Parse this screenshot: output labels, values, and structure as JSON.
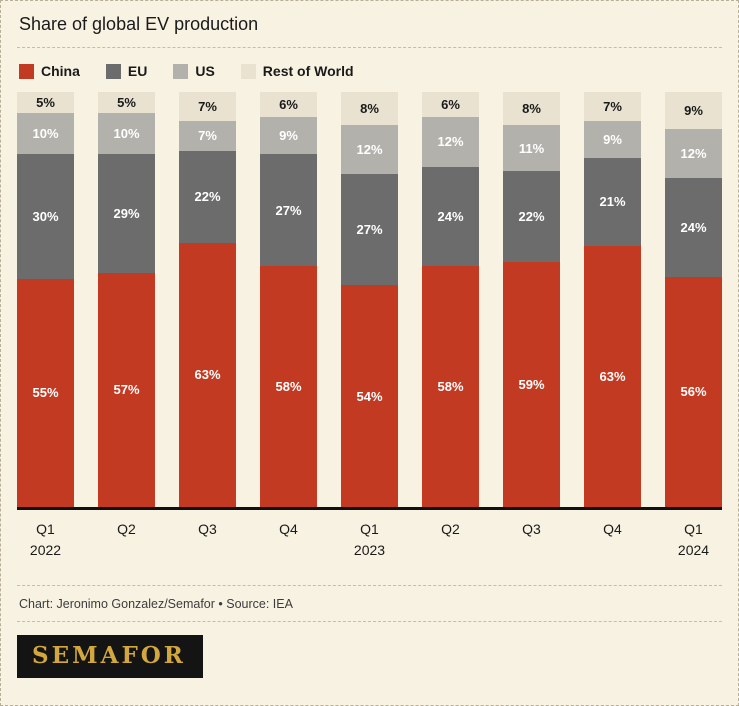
{
  "title": "Share of global EV production",
  "legend": [
    {
      "label": "China",
      "color": "#c23a22",
      "label_color": "#ffffff"
    },
    {
      "label": "EU",
      "color": "#6c6c6c",
      "label_color": "#ffffff"
    },
    {
      "label": "US",
      "color": "#b3b1ac",
      "label_color": "#ffffff"
    },
    {
      "label": "Rest of World",
      "color": "#e9e2d1",
      "label_color": "#1a1a1a"
    }
  ],
  "chart_data": {
    "type": "bar",
    "stacked": true,
    "title": "Share of global EV production",
    "ylim": [
      0,
      100
    ],
    "grid": false,
    "legend_position": "top",
    "value_suffix": "%",
    "categories": [
      {
        "quarter": "Q1",
        "year": "2022"
      },
      {
        "quarter": "Q2"
      },
      {
        "quarter": "Q3"
      },
      {
        "quarter": "Q4"
      },
      {
        "quarter": "Q1",
        "year": "2023"
      },
      {
        "quarter": "Q2"
      },
      {
        "quarter": "Q3"
      },
      {
        "quarter": "Q4"
      },
      {
        "quarter": "Q1",
        "year": "2024"
      }
    ],
    "series": [
      {
        "name": "China",
        "color": "#c23a22",
        "label_color": "#ffffff",
        "values": [
          55,
          57,
          63,
          58,
          54,
          58,
          59,
          63,
          56
        ]
      },
      {
        "name": "EU",
        "color": "#6c6c6c",
        "label_color": "#ffffff",
        "values": [
          30,
          29,
          22,
          27,
          27,
          24,
          22,
          21,
          24
        ]
      },
      {
        "name": "US",
        "color": "#b3b1ac",
        "label_color": "#ffffff",
        "values": [
          10,
          10,
          7,
          9,
          12,
          12,
          11,
          9,
          12
        ]
      },
      {
        "name": "Rest of World",
        "color": "#e9e2d1",
        "label_color": "#1a1a1a",
        "values": [
          5,
          5,
          7,
          6,
          8,
          6,
          8,
          7,
          9
        ]
      }
    ]
  },
  "footer": {
    "credit": "Chart: Jeronimo Gonzalez/Semafor • Source: IEA"
  },
  "brand": {
    "logo_text": "SEMAFOR",
    "logo_bg": "#141414",
    "logo_color": "#d2a73e"
  }
}
